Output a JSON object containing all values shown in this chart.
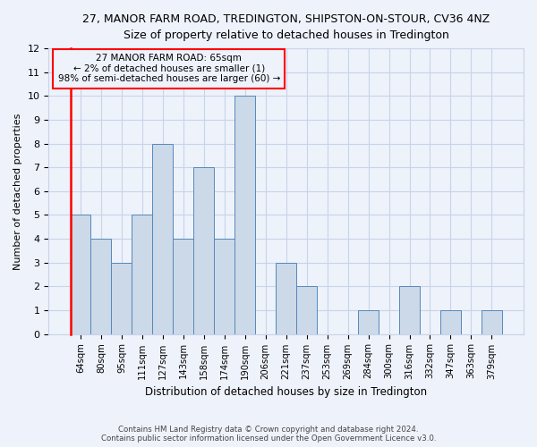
{
  "title": "27, MANOR FARM ROAD, TREDINGTON, SHIPSTON-ON-STOUR, CV36 4NZ",
  "subtitle": "Size of property relative to detached houses in Tredington",
  "xlabel": "Distribution of detached houses by size in Tredington",
  "ylabel": "Number of detached properties",
  "categories": [
    "64sqm",
    "80sqm",
    "95sqm",
    "111sqm",
    "127sqm",
    "143sqm",
    "158sqm",
    "174sqm",
    "190sqm",
    "206sqm",
    "221sqm",
    "237sqm",
    "253sqm",
    "269sqm",
    "284sqm",
    "300sqm",
    "316sqm",
    "332sqm",
    "347sqm",
    "363sqm",
    "379sqm"
  ],
  "values": [
    5,
    4,
    3,
    5,
    8,
    4,
    7,
    4,
    10,
    0,
    3,
    2,
    0,
    0,
    1,
    0,
    2,
    0,
    1,
    0,
    1
  ],
  "bar_color": "#ccd9e8",
  "bar_edge_color": "#5588bb",
  "ylim": [
    0,
    12
  ],
  "yticks": [
    0,
    1,
    2,
    3,
    4,
    5,
    6,
    7,
    8,
    9,
    10,
    11,
    12
  ],
  "annotation_line1": "27 MANOR FARM ROAD: 65sqm",
  "annotation_line2": "← 2% of detached houses are smaller (1)",
  "annotation_line3": "98% of semi-detached houses are larger (60) →",
  "footer1": "Contains HM Land Registry data © Crown copyright and database right 2024.",
  "footer2": "Contains public sector information licensed under the Open Government Licence v3.0.",
  "grid_color": "#c8d4e8",
  "background_color": "#eef2fb",
  "vline_color": "red",
  "annotation_box_color": "red"
}
